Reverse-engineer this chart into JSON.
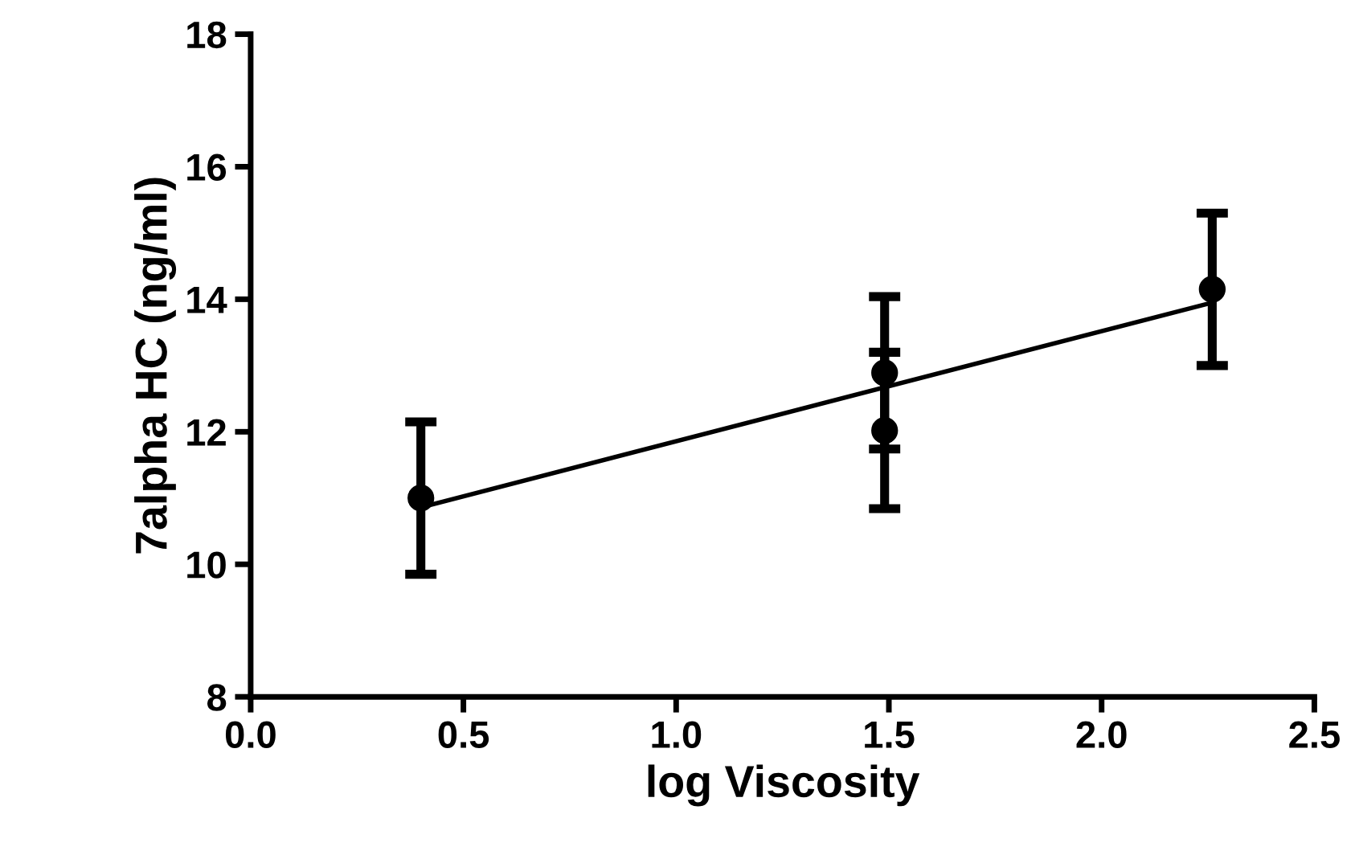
{
  "chart_data": {
    "type": "scatter",
    "xlabel": "log Viscosity",
    "ylabel": "7alpha HC (ng/ml)",
    "xlim": [
      0,
      2.5
    ],
    "ylim": [
      8,
      18
    ],
    "xticks": [
      {
        "value": 0,
        "label": "0.0"
      },
      0.5,
      {
        "value": 1,
        "label": "1.0"
      },
      1.5,
      {
        "value": 2,
        "label": "2.0"
      },
      2.5
    ],
    "yticks": [
      8,
      10,
      12,
      14,
      16,
      18
    ],
    "grid": false,
    "legend": false,
    "series": [
      {
        "marker": "circle",
        "color": "#000000",
        "x": [
          0.4,
          1.49,
          1.49,
          2.26
        ],
        "values": [
          11.0,
          12.89,
          12.02,
          14.15
        ],
        "errors": [
          1.15,
          1.15,
          1.18,
          1.15
        ]
      },
      {
        "type": "line",
        "color": "#000000",
        "x": [
          0.4,
          2.26
        ],
        "values": [
          10.86,
          13.95
        ],
        "line_style": "solid"
      }
    ]
  }
}
